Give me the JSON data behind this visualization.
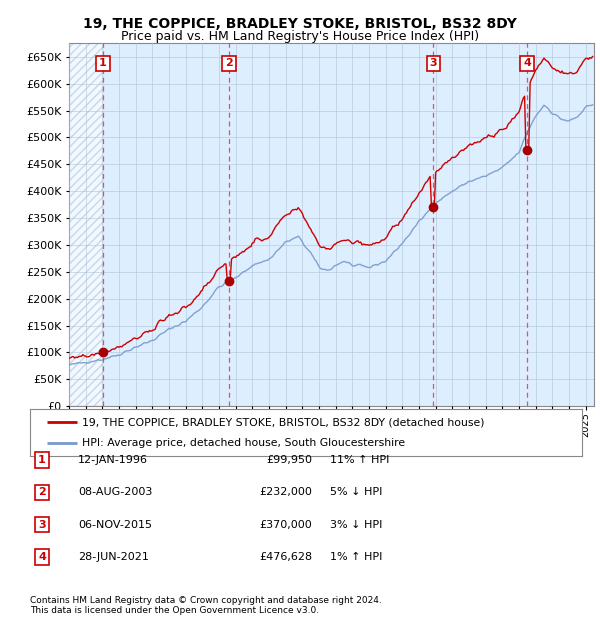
{
  "title1": "19, THE COPPICE, BRADLEY STOKE, BRISTOL, BS32 8DY",
  "title2": "Price paid vs. HM Land Registry's House Price Index (HPI)",
  "ylim": [
    0,
    675000
  ],
  "yticks": [
    0,
    50000,
    100000,
    150000,
    200000,
    250000,
    300000,
    350000,
    400000,
    450000,
    500000,
    550000,
    600000,
    650000
  ],
  "xlim_start": 1994.0,
  "xlim_end": 2025.5,
  "background_color": "#ffffff",
  "plot_bg_color": "#ddeeff",
  "grid_color": "#b0c4d8",
  "sale_line_color": "#cc0000",
  "hpi_line_color": "#7799cc",
  "vline_color": "#dd3333",
  "marker_color": "#aa0000",
  "transaction_label_color": "#cc0000",
  "purchases": [
    {
      "date_year": 1996.04,
      "price": 99950,
      "label": "1",
      "hpi_pct": "11% ↑ HPI",
      "date_str": "12-JAN-1996",
      "price_str": "£99,950"
    },
    {
      "date_year": 2003.6,
      "price": 232000,
      "label": "2",
      "hpi_pct": "5% ↓ HPI",
      "date_str": "08-AUG-2003",
      "price_str": "£232,000"
    },
    {
      "date_year": 2015.85,
      "price": 370000,
      "label": "3",
      "hpi_pct": "3% ↓ HPI",
      "date_str": "06-NOV-2015",
      "price_str": "£370,000"
    },
    {
      "date_year": 2021.49,
      "price": 476628,
      "label": "4",
      "hpi_pct": "1% ↑ HPI",
      "date_str": "28-JUN-2021",
      "price_str": "£476,628"
    }
  ],
  "legend1": "19, THE COPPICE, BRADLEY STOKE, BRISTOL, BS32 8DY (detached house)",
  "legend2": "HPI: Average price, detached house, South Gloucestershire",
  "footer1": "Contains HM Land Registry data © Crown copyright and database right 2024.",
  "footer2": "This data is licensed under the Open Government Licence v3.0."
}
